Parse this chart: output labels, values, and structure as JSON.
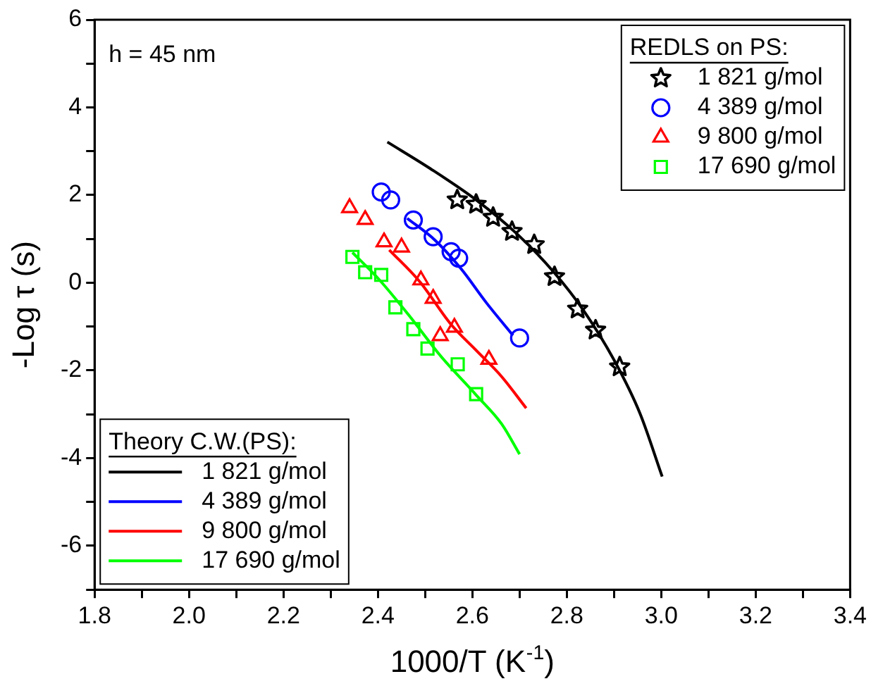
{
  "chart_data": {
    "type": "scatter",
    "xlabel": "1000/T (K$^{-1}$)",
    "ylabel": "-Log τ (s)",
    "legend": "bottom left",
    "legend_title": [
      "Theory C.W.(PS):",
      "REDLS on PS:"
    ],
    "annotations": [
      "h = 45 nm"
    ],
    "xlim": [
      1.8,
      3.4
    ],
    "ylim": [
      -7,
      6
    ],
    "xticks": [
      {
        "value": 1.8,
        "label": "1.8"
      },
      {
        "value": 1.9,
        "label": null
      },
      {
        "value": 2.0,
        "label": "2.0"
      },
      {
        "value": 2.1,
        "label": null
      },
      {
        "value": 2.2,
        "label": "2.2"
      },
      {
        "value": 2.3,
        "label": null
      },
      {
        "value": 2.4,
        "label": "2.4"
      },
      {
        "value": 2.5,
        "label": null
      },
      {
        "value": 2.6,
        "label": "2.6"
      },
      {
        "value": 2.7,
        "label": null
      },
      {
        "value": 2.8,
        "label": "2.8"
      },
      {
        "value": 2.9,
        "label": null
      },
      {
        "value": 3.0,
        "label": "3.0"
      },
      {
        "value": 3.1,
        "label": null
      },
      {
        "value": 3.2,
        "label": "3.2"
      },
      {
        "value": 3.3,
        "label": null
      },
      {
        "value": 3.4,
        "label": "3.4"
      }
    ],
    "yticks": [
      {
        "value": -7,
        "label": null
      },
      -6,
      {
        "value": -5,
        "label": null
      },
      -4,
      {
        "value": -3,
        "label": null
      },
      -2,
      {
        "value": -1,
        "label": null
      },
      0,
      {
        "value": 1,
        "label": null
      },
      2,
      {
        "value": 3,
        "label": null
      },
      4,
      {
        "value": 5,
        "label": null
      },
      6
    ],
    "series": [
      {
        "name": "1 821 g/mol",
        "marker": "star",
        "color": "#000000",
        "x": [
          2.568,
          2.608,
          2.644,
          2.684,
          2.731,
          2.774,
          2.823,
          2.861,
          2.912
        ],
        "values": [
          1.89,
          1.79,
          1.49,
          1.17,
          0.87,
          0.14,
          -0.6,
          -1.08,
          -1.92
        ]
      },
      {
        "name": "4 389 g/mol",
        "marker": "circle",
        "color": "#0000ff",
        "x": [
          2.407,
          2.427,
          2.475,
          2.517,
          2.555,
          2.571,
          2.7
        ],
        "values": [
          2.07,
          1.89,
          1.43,
          1.05,
          0.71,
          0.56,
          -1.26
        ]
      },
      {
        "name": "9 800 g/mol",
        "marker": "triangle",
        "color": "#ff0000",
        "x": [
          2.34,
          2.373,
          2.413,
          2.45,
          2.491,
          2.517,
          2.562,
          2.532,
          2.635
        ],
        "values": [
          1.71,
          1.44,
          0.93,
          0.81,
          0.06,
          -0.36,
          -1.02,
          -1.21,
          -1.75
        ]
      },
      {
        "name": "17 690 g/mol",
        "marker": "square",
        "color": "#00ff00",
        "x": [
          2.346,
          2.373,
          2.407,
          2.437,
          2.475,
          2.505,
          2.569,
          2.608
        ],
        "values": [
          0.59,
          0.24,
          0.18,
          -0.56,
          -1.06,
          -1.5,
          -1.86,
          -2.54
        ]
      },
      {
        "name": "1 821 g/mol",
        "type": "line",
        "marker": "none",
        "line_style": "solid",
        "color": "#000000",
        "x": [
          2.42,
          2.51,
          2.608,
          2.695,
          2.771,
          2.836,
          2.901,
          2.955,
          3.002
        ],
        "values": [
          3.21,
          2.61,
          1.89,
          1.11,
          0.26,
          -0.64,
          -1.78,
          -2.98,
          -4.42
        ]
      },
      {
        "name": "4 389 g/mol",
        "type": "line",
        "marker": "none",
        "line_style": "solid",
        "color": "#0000ff",
        "x": [
          2.462,
          2.52,
          2.576,
          2.63,
          2.686
        ],
        "values": [
          1.47,
          0.98,
          0.32,
          -0.46,
          -1.2
        ]
      },
      {
        "name": "9 800 g/mol",
        "type": "line",
        "marker": "none",
        "line_style": "solid",
        "color": "#ff0000",
        "x": [
          2.424,
          2.489,
          2.554,
          2.608,
          2.662,
          2.714
        ],
        "values": [
          0.75,
          0.02,
          -0.94,
          -1.54,
          -2.14,
          -2.86
        ]
      },
      {
        "name": "17 690 g/mol",
        "type": "line",
        "marker": "none",
        "line_style": "solid",
        "color": "#00ff00",
        "x": [
          2.346,
          2.402,
          2.467,
          2.532,
          2.608,
          2.662,
          2.7
        ],
        "values": [
          0.69,
          0.08,
          -0.76,
          -1.66,
          -2.56,
          -3.22,
          -3.91
        ]
      }
    ]
  }
}
